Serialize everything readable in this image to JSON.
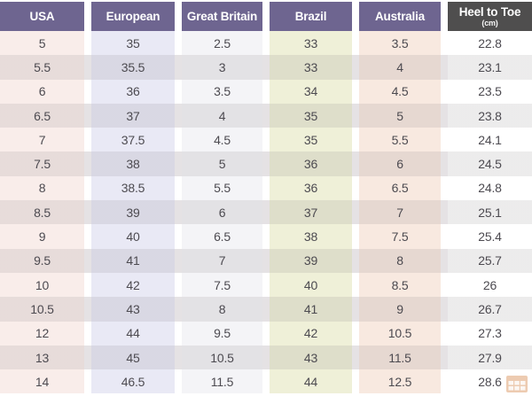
{
  "table": {
    "columns": [
      {
        "label": "USA"
      },
      {
        "label": "European"
      },
      {
        "label": "Great Britain"
      },
      {
        "label": "Brazil"
      },
      {
        "label": "Australia"
      },
      {
        "label": "Heel to Toe",
        "sublabel": "(cm)"
      }
    ],
    "rows": [
      [
        "5",
        "35",
        "2.5",
        "33",
        "3.5",
        "22.8"
      ],
      [
        "5.5",
        "35.5",
        "3",
        "33",
        "4",
        "23.1"
      ],
      [
        "6",
        "36",
        "3.5",
        "34",
        "4.5",
        "23.5"
      ],
      [
        "6.5",
        "37",
        "4",
        "35",
        "5",
        "23.8"
      ],
      [
        "7",
        "37.5",
        "4.5",
        "35",
        "5.5",
        "24.1"
      ],
      [
        "7.5",
        "38",
        "5",
        "36",
        "6",
        "24.5"
      ],
      [
        "8",
        "38.5",
        "5.5",
        "36",
        "6.5",
        "24.8"
      ],
      [
        "8.5",
        "39",
        "6",
        "37",
        "7",
        "25.1"
      ],
      [
        "9",
        "40",
        "6.5",
        "38",
        "7.5",
        "25.4"
      ],
      [
        "9.5",
        "41",
        "7",
        "39",
        "8",
        "25.7"
      ],
      [
        "10",
        "42",
        "7.5",
        "40",
        "8.5",
        "26"
      ],
      [
        "10.5",
        "43",
        "8",
        "41",
        "9",
        "26.7"
      ],
      [
        "12",
        "44",
        "9.5",
        "42",
        "10.5",
        "27.3"
      ],
      [
        "13",
        "45",
        "10.5",
        "43",
        "11.5",
        "27.9"
      ],
      [
        "14",
        "46.5",
        "11.5",
        "44",
        "12.5",
        "28.6"
      ]
    ]
  },
  "colors": {
    "header_purple": "#6e6590",
    "header_dark": "#4f4e4e",
    "col_usa": "#f9edea",
    "col_european": "#e9e9f5",
    "col_great_britain": "#f4f4f7",
    "col_brazil": "#eff0d8",
    "col_australia": "#f8e9e0",
    "col_heel": "#ffffff",
    "watermark_orange": "#dfa272"
  },
  "watermark": {
    "icon": "grid-logo-icon"
  }
}
